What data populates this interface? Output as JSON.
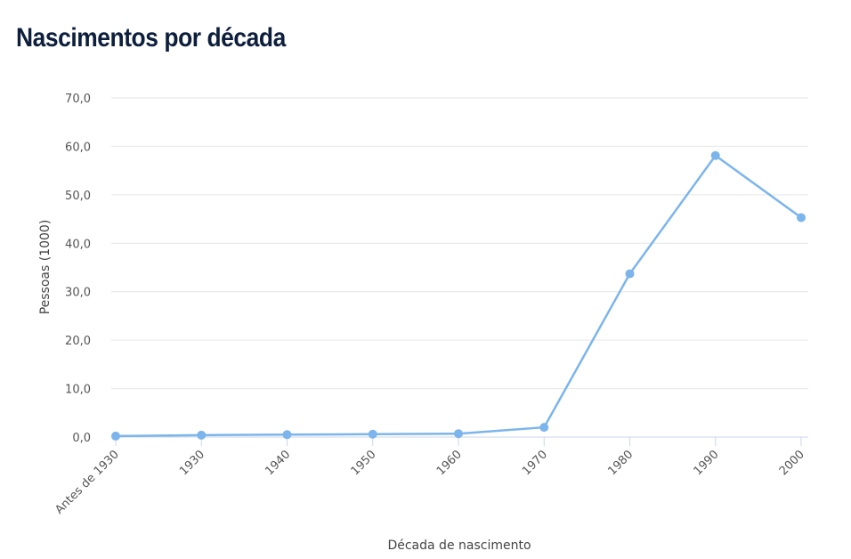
{
  "chart_data": {
    "type": "line",
    "title": "Nascimentos por década",
    "xlabel": "Década de nascimento",
    "ylabel": "Pessoas (1000)",
    "categories": [
      "Antes de 1930",
      "1930",
      "1940",
      "1950",
      "1960",
      "1970",
      "1980",
      "1990",
      "2000"
    ],
    "series": [
      {
        "values": [
          0.2,
          0.4,
          0.5,
          0.6,
          0.7,
          2.0,
          33.7,
          58.1,
          45.3
        ]
      }
    ],
    "ylim": [
      0,
      70
    ],
    "yticks": [
      "0,0",
      "10,0",
      "20,0",
      "30,0",
      "40,0",
      "50,0",
      "60,0",
      "70,0"
    ],
    "grid": true,
    "color": "#7cb5ec"
  }
}
